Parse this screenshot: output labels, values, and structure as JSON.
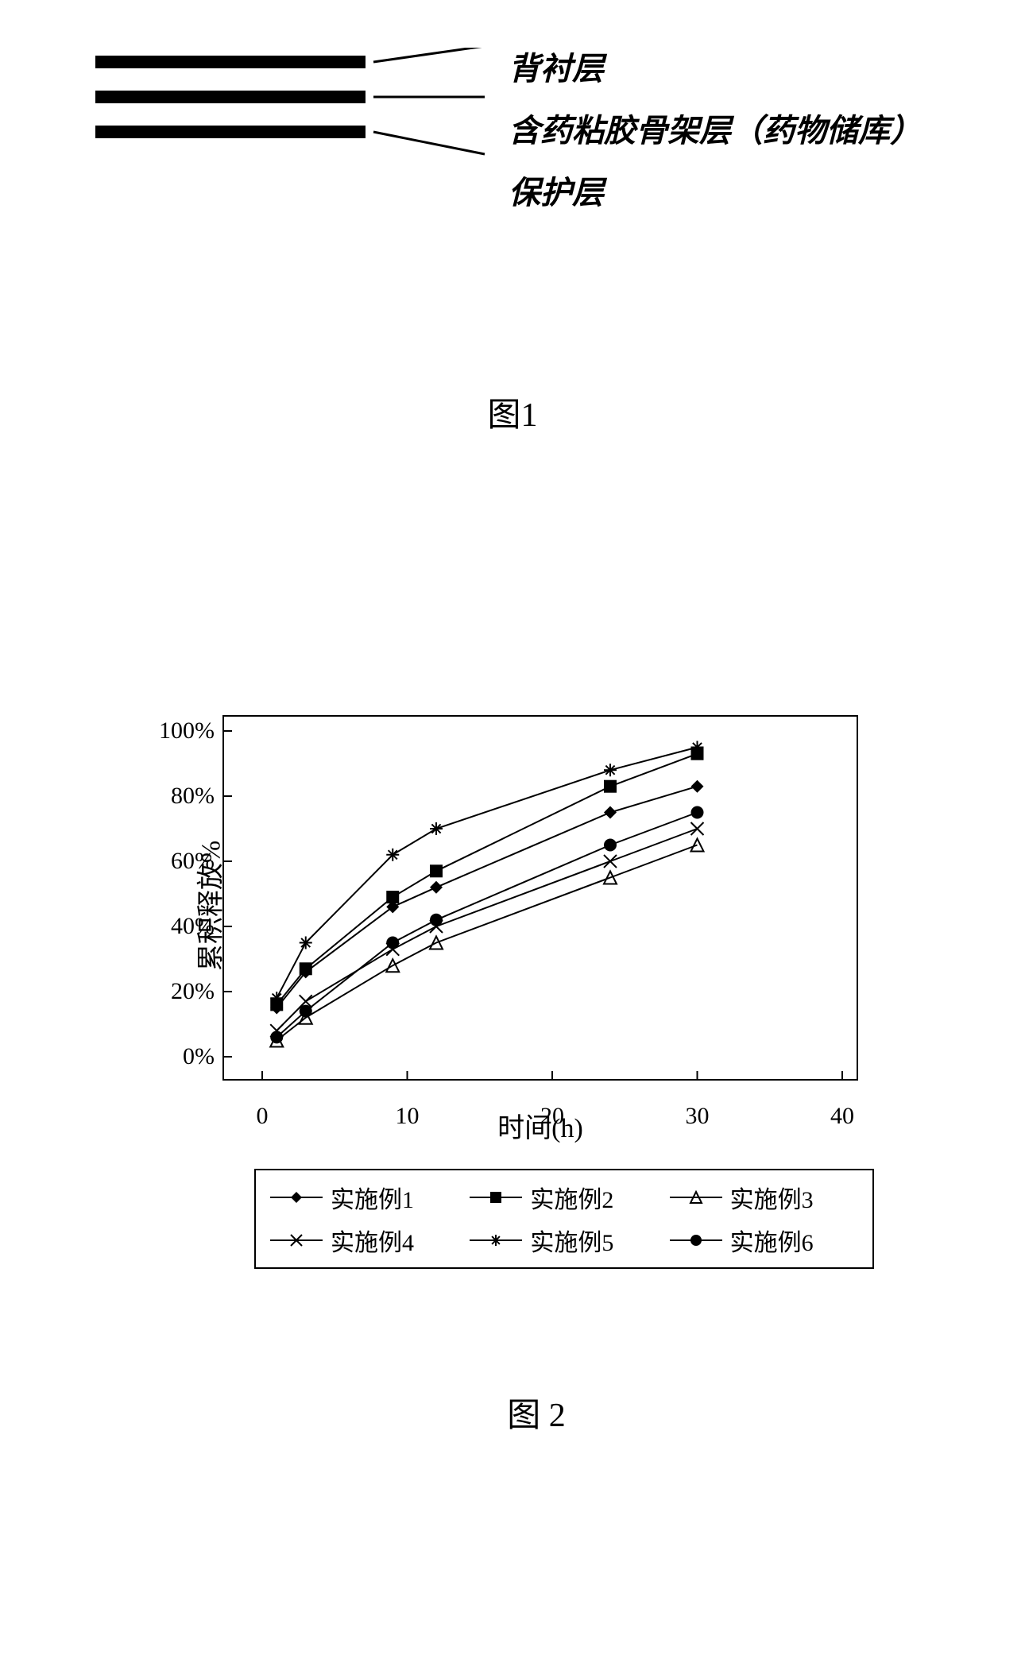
{
  "figure1": {
    "labels": [
      "背衬层",
      "含药粘胶骨架层（药物储库）",
      "保护层"
    ],
    "caption": "图1",
    "bar_color": "#000000"
  },
  "figure2": {
    "caption": "图 2",
    "chart": {
      "type": "line",
      "xlabel": "时间(h)",
      "ylabel": "累积释放%",
      "xlim": [
        0,
        40
      ],
      "ylim": [
        0,
        100
      ],
      "xticks": [
        0,
        10,
        20,
        30,
        40
      ],
      "yticks": [
        0,
        20,
        40,
        60,
        80,
        100
      ],
      "ytick_labels": [
        "0%",
        "20%",
        "40%",
        "60%",
        "80%",
        "100%"
      ],
      "background_color": "#ffffff",
      "axis_color": "#000000",
      "tick_font_size": 30,
      "label_font_size": 34,
      "line_color": "#000000",
      "line_width": 2,
      "x_values": [
        1,
        3,
        9,
        12,
        24,
        30
      ],
      "series": [
        {
          "name": "实施例1",
          "marker": "diamond-filled",
          "y": [
            15,
            26,
            46,
            52,
            75,
            83
          ]
        },
        {
          "name": "实施例2",
          "marker": "square-filled",
          "y": [
            16,
            27,
            49,
            57,
            83,
            93
          ]
        },
        {
          "name": "实施例3",
          "marker": "triangle-open",
          "y": [
            5,
            12,
            28,
            35,
            55,
            65
          ]
        },
        {
          "name": "实施例4",
          "marker": "x",
          "y": [
            8,
            17,
            33,
            40,
            60,
            70
          ]
        },
        {
          "name": "实施例5",
          "marker": "asterisk",
          "y": [
            18,
            35,
            62,
            70,
            88,
            95
          ]
        },
        {
          "name": "实施例6",
          "marker": "circle-filled",
          "y": [
            6,
            14,
            35,
            42,
            65,
            75
          ]
        }
      ]
    }
  }
}
